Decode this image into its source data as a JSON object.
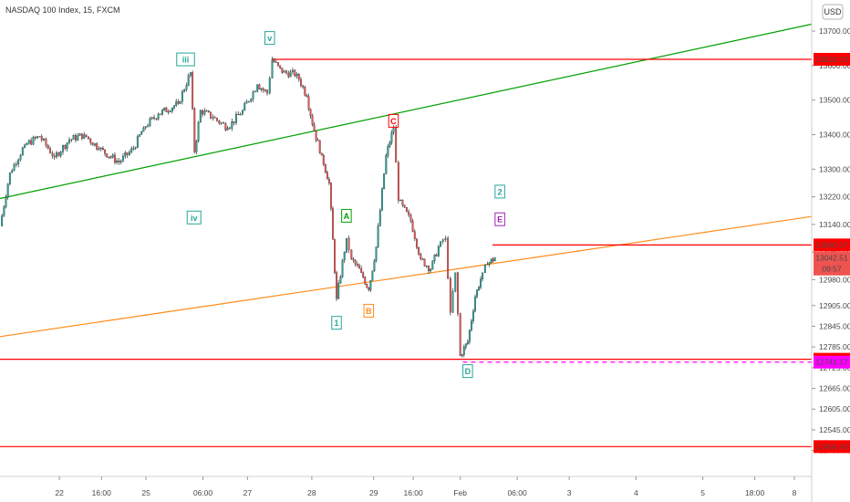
{
  "header": {
    "title": "NASDAQ 100 Index, 15, FXCM",
    "currency": "USD"
  },
  "chart_data": {
    "type": "candlestick",
    "ylim": [
      12410,
      13790
    ],
    "y_ticks": [
      12485,
      12545,
      12605,
      12665,
      12725,
      12785,
      12845,
      12905,
      12980,
      13060,
      13140,
      13220,
      13300,
      13400,
      13500,
      13600,
      13700
    ],
    "x_ticks": [
      {
        "label": "22",
        "x": 1.2
      },
      {
        "label": "16:00",
        "x": 2.05
      },
      {
        "label": "25",
        "x": 2.95
      },
      {
        "label": "06:00",
        "x": 4.1
      },
      {
        "label": "27",
        "x": 5.0
      },
      {
        "label": "28",
        "x": 6.3
      },
      {
        "label": "29",
        "x": 7.55
      },
      {
        "label": "16:00",
        "x": 8.35
      },
      {
        "label": "Feb",
        "x": 9.3
      },
      {
        "label": "06:00",
        "x": 10.45
      },
      {
        "label": "3",
        "x": 11.5
      },
      {
        "label": "4",
        "x": 12.85
      },
      {
        "label": "5",
        "x": 14.2
      },
      {
        "label": "18:00",
        "x": 15.25
      },
      {
        "label": "8",
        "x": 16.05
      }
    ],
    "price_path": [
      [
        0,
        13135
      ],
      [
        0.2,
        13290
      ],
      [
        0.5,
        13370
      ],
      [
        0.8,
        13395
      ],
      [
        1.1,
        13335
      ],
      [
        1.4,
        13385
      ],
      [
        1.7,
        13400
      ],
      [
        2.0,
        13360
      ],
      [
        2.4,
        13320
      ],
      [
        2.7,
        13360
      ],
      [
        2.9,
        13420
      ],
      [
        3.2,
        13460
      ],
      [
        3.6,
        13490
      ],
      [
        3.85,
        13580
      ],
      [
        3.93,
        13350
      ],
      [
        4.05,
        13470
      ],
      [
        4.3,
        13450
      ],
      [
        4.6,
        13420
      ],
      [
        4.9,
        13470
      ],
      [
        5.2,
        13545
      ],
      [
        5.4,
        13520
      ],
      [
        5.5,
        13618
      ],
      [
        5.7,
        13580
      ],
      [
        6.0,
        13575
      ],
      [
        6.2,
        13510
      ],
      [
        6.35,
        13410
      ],
      [
        6.5,
        13340
      ],
      [
        6.65,
        13260
      ],
      [
        6.8,
        12925
      ],
      [
        7.0,
        13100
      ],
      [
        7.1,
        13040
      ],
      [
        7.3,
        13000
      ],
      [
        7.45,
        12950
      ],
      [
        7.6,
        13075
      ],
      [
        7.8,
        13340
      ],
      [
        7.95,
        13420
      ],
      [
        8.05,
        13210
      ],
      [
        8.3,
        13150
      ],
      [
        8.5,
        13040
      ],
      [
        8.7,
        13010
      ],
      [
        8.9,
        13090
      ],
      [
        9.0,
        13100
      ],
      [
        9.1,
        12885
      ],
      [
        9.2,
        13000
      ],
      [
        9.3,
        12760
      ],
      [
        9.45,
        12800
      ],
      [
        9.6,
        12930
      ],
      [
        9.75,
        13000
      ],
      [
        9.85,
        13025
      ],
      [
        10.0,
        13043
      ]
    ],
    "levels": [
      {
        "value": 13618.23,
        "label": "13618.23",
        "color": "#ff0000",
        "style": "solid",
        "x_from": 5.5
      },
      {
        "value": 13080.57,
        "label": "13080.57",
        "color": "#ff0000",
        "style": "solid",
        "x_from": 9.95
      },
      {
        "value": 12749.4,
        "label": "12749.40",
        "color": "#ff0000",
        "style": "solid",
        "x_from": 0
      },
      {
        "value": 12496.4,
        "label": "12496.40",
        "color": "#ff0000",
        "style": "solid",
        "x_from": 0
      },
      {
        "value": 12741.17,
        "label": "12741.17",
        "color": "#ff00ff",
        "style": "dashed",
        "x_from": 9.35
      }
    ],
    "last_price": {
      "value": 13042.51,
      "label": "13042.51",
      "countdown": "09:57",
      "color": "#ef5350"
    },
    "trend_lines": [
      {
        "name": "green-trend",
        "color": "#00a000",
        "from": [
          0,
          13215
        ],
        "to": [
          16.4,
          13720
        ]
      },
      {
        "name": "orange-trend",
        "color": "#ff8c1a",
        "from": [
          0,
          12815
        ],
        "to": [
          16.4,
          13163
        ]
      }
    ],
    "wave_labels": [
      {
        "text": "v",
        "x": 5.45,
        "price": 13680,
        "color": "#26a69a",
        "box": true
      },
      {
        "text": "iii",
        "x": 3.75,
        "price": 13618,
        "color": "#26a69a",
        "box": true
      },
      {
        "text": "iv",
        "x": 3.92,
        "price": 13160,
        "color": "#26a69a",
        "box": true
      },
      {
        "text": "C",
        "x": 7.95,
        "price": 13440,
        "color": "#ff0000",
        "box": true
      },
      {
        "text": "A",
        "x": 7.0,
        "price": 13165,
        "color": "#00a000",
        "box": true
      },
      {
        "text": "B",
        "x": 7.45,
        "price": 12890,
        "color": "#ff8c1a",
        "box": true
      },
      {
        "text": "1",
        "x": 6.8,
        "price": 12855,
        "color": "#26a69a",
        "box": true
      },
      {
        "text": "D",
        "x": 9.45,
        "price": 12715,
        "color": "#26a69a",
        "box": true
      },
      {
        "text": "2",
        "x": 10.1,
        "price": 13235,
        "color": "#26a69a",
        "box": true
      },
      {
        "text": "E",
        "x": 10.1,
        "price": 13155,
        "color": "#9c27b0",
        "box": true
      }
    ]
  }
}
